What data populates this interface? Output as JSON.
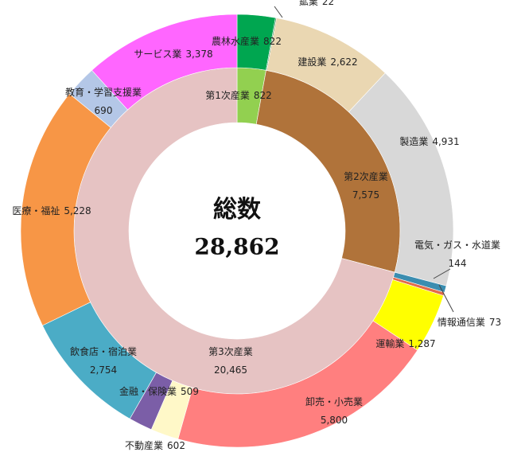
{
  "chart_data": {
    "type": "sunburst",
    "title": "総数",
    "total": {
      "value": 28862,
      "label": "28,862"
    },
    "inner": {
      "categories": [
        "第1次産業",
        "第2次産業",
        "第3次産業"
      ],
      "values": [
        822,
        7575,
        20465
      ],
      "value_labels": [
        "822",
        "7,575",
        "20,465"
      ],
      "colors": [
        "#92d050",
        "#b0733a",
        "#e6c3c3"
      ]
    },
    "outer": {
      "categories": [
        "農林水産業",
        "鉱業",
        "建設業",
        "製造業",
        "電気・ガス・水道業",
        "情報通信業",
        "運輸業",
        "卸売・小売業",
        "不動産業",
        "金融・保険業",
        "飲食店・宿泊業",
        "医療・福祉",
        "教育・学習支援業",
        "サービス業"
      ],
      "values": [
        822,
        22,
        2622,
        4931,
        144,
        73,
        1287,
        5800,
        602,
        509,
        2754,
        5228,
        690,
        3378
      ],
      "value_labels": [
        "822",
        "22",
        "2,622",
        "4,931",
        "144",
        "73",
        "1,287",
        "5,800",
        "602",
        "509",
        "2,754",
        "5,228",
        "690",
        "3,378"
      ],
      "colors": [
        "#00a650",
        "#1e7a3c",
        "#ead7b2",
        "#d8d8d8",
        "#3a8db0",
        "#e26b4a",
        "#ffff00",
        "#ff7f7f",
        "#fff8c8",
        "#7b5ea7",
        "#4bacc6",
        "#f79646",
        "#b4c7e7",
        "#ff66ff"
      ]
    }
  }
}
